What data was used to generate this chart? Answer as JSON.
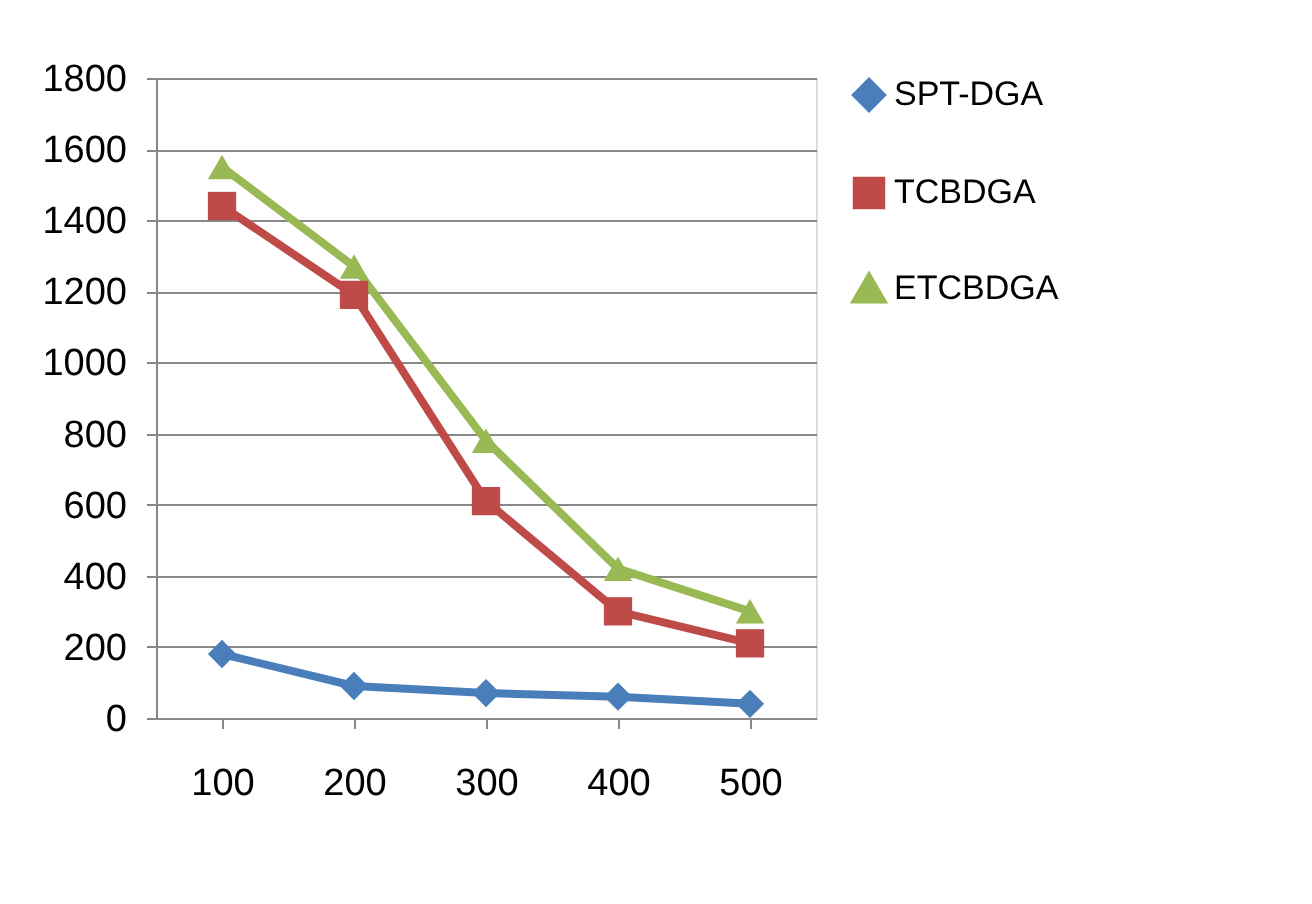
{
  "chart_data": {
    "type": "line",
    "categories": [
      "100",
      "200",
      "300",
      "400",
      "500"
    ],
    "series": [
      {
        "name": "SPT-DGA",
        "color": "#4a7ebb",
        "marker": "diamond",
        "values": [
          180,
          90,
          70,
          60,
          40
        ]
      },
      {
        "name": "TCBDGA",
        "color": "#be4b48",
        "marker": "square",
        "values": [
          1440,
          1190,
          610,
          300,
          210
        ]
      },
      {
        "name": "ETCBDGA",
        "color": "#98b954",
        "marker": "triangle",
        "values": [
          1550,
          1270,
          780,
          420,
          300
        ]
      }
    ],
    "ylim": [
      0,
      1800
    ],
    "yticks": [
      0,
      200,
      400,
      600,
      800,
      1000,
      1200,
      1400,
      1600,
      1800
    ],
    "grid": "y",
    "legend": "right",
    "line_style": "solid"
  }
}
